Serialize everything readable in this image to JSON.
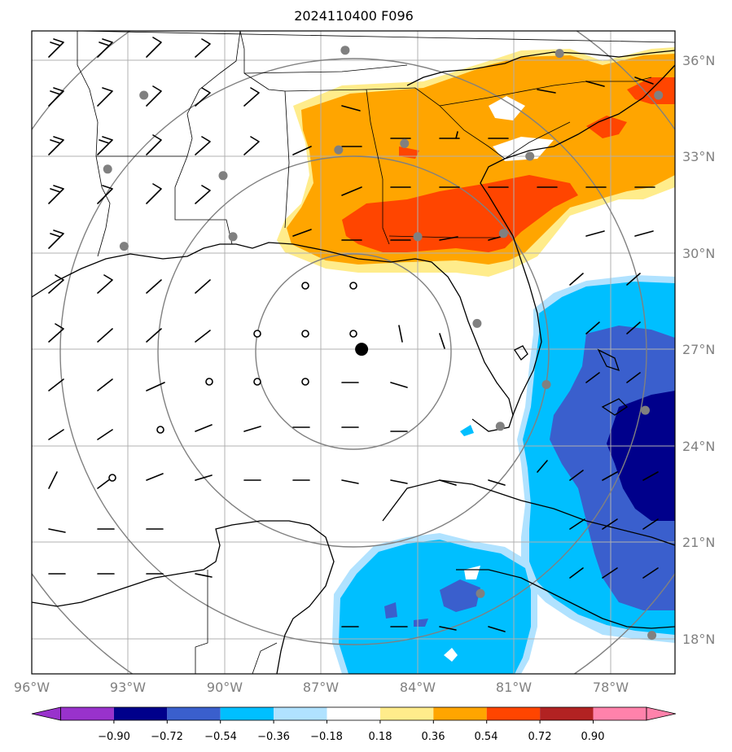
{
  "title": "2024110400 F096",
  "map": {
    "lon_range": [
      -96,
      -76.5
    ],
    "lat_range": [
      16.8,
      36.8
    ],
    "lon_ticks": [
      "96°W",
      "93°W",
      "90°W",
      "87°W",
      "84°W",
      "81°W",
      "78°W"
    ],
    "lat_ticks": [
      "36°N",
      "33°N",
      "30°N",
      "27°N",
      "24°N",
      "21°N",
      "18°N"
    ],
    "center": {
      "lon": -86.0,
      "lat": 26.9
    },
    "range_rings": 4,
    "stations": [
      {
        "lon": -86.5,
        "lat": 36.2
      },
      {
        "lon": -80.0,
        "lat": 36.1
      },
      {
        "lon": -93.7,
        "lat": 32.5
      },
      {
        "lon": -90.2,
        "lat": 32.3
      },
      {
        "lon": -86.7,
        "lat": 33.1
      },
      {
        "lon": -84.7,
        "lat": 33.3
      },
      {
        "lon": -80.9,
        "lat": 32.9
      },
      {
        "lon": -77.0,
        "lat": 34.8
      },
      {
        "lon": -93.2,
        "lat": 30.1
      },
      {
        "lon": -89.9,
        "lat": 30.4
      },
      {
        "lon": -84.3,
        "lat": 30.4
      },
      {
        "lon": -81.7,
        "lat": 30.5
      },
      {
        "lon": -82.5,
        "lat": 27.7
      },
      {
        "lon": -80.4,
        "lat": 25.8
      },
      {
        "lon": -81.8,
        "lat": 24.5
      },
      {
        "lon": -77.4,
        "lat": 25.0
      },
      {
        "lon": -82.4,
        "lat": 19.3
      },
      {
        "lon": -77.2,
        "lat": 18.0
      },
      {
        "lon": -92.6,
        "lat": 34.8
      }
    ]
  },
  "colorbar": {
    "ticks": [
      "−0.90",
      "−0.72",
      "−0.54",
      "−0.36",
      "−0.18",
      "0.18",
      "0.36",
      "0.54",
      "0.72",
      "0.90"
    ],
    "colors": [
      "#9932cc",
      "#00008b",
      "#3a5fcd",
      "#00bfff",
      "#b0e2ff",
      "#ffffff",
      "#ffec8b",
      "#ffa500",
      "#ff4500",
      "#b22222",
      "#ff82ab"
    ],
    "colors_meaning": "purple, navy, royal-blue, deep-sky-blue, light-sky-blue, white, light-goldenrod, orange, orange-red, firebrick, pink"
  }
}
